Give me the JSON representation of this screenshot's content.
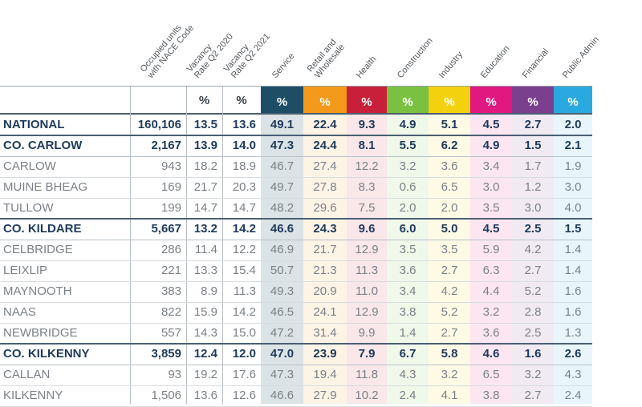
{
  "headers": {
    "occupied_units": "Occupied units\nwith NACE Code",
    "vac2020": "Vacancy\nRate Q2 2020",
    "vac2021": "Vacancy\nRate Q2 2021",
    "service": "Service",
    "retail": "Retail and\nWholesale",
    "health": "Health",
    "construction": "Construction",
    "industry": "Industry",
    "education": "Education",
    "financial": "Financial",
    "public_admin": "Public Admin",
    "percent_symbol": "%"
  },
  "colors": {
    "service": "#1e4e66",
    "retail": "#f39a1c",
    "health": "#c8203a",
    "construction": "#7ac142",
    "industry": "#f4d10e",
    "education": "#e0187f",
    "financial": "#7b3f8f",
    "public_admin": "#29a9df"
  },
  "rows": [
    {
      "name": "NATIONAL",
      "bold": true,
      "units": "160,106",
      "v20": "13.5",
      "v21": "13.6",
      "service": "49.1",
      "retail": "22.4",
      "health": "9.3",
      "construction": "4.9",
      "industry": "5.1",
      "education": "4.5",
      "financial": "2.7",
      "public_admin": "2.0"
    },
    {
      "name": "CO. CARLOW",
      "bold": true,
      "units": "2,167",
      "v20": "13.9",
      "v21": "14.0",
      "service": "47.3",
      "retail": "24.4",
      "health": "8.1",
      "construction": "5.5",
      "industry": "6.2",
      "education": "4.9",
      "financial": "1.5",
      "public_admin": "2.1"
    },
    {
      "name": "CARLOW",
      "bold": false,
      "units": "943",
      "v20": "18.2",
      "v21": "18.9",
      "service": "46.7",
      "retail": "27.4",
      "health": "12.2",
      "construction": "3.2",
      "industry": "3.6",
      "education": "3.4",
      "financial": "1.7",
      "public_admin": "1.9"
    },
    {
      "name": "MUINE BHEAG",
      "bold": false,
      "units": "169",
      "v20": "21.7",
      "v21": "20.3",
      "service": "49.7",
      "retail": "27.8",
      "health": "8.3",
      "construction": "0.6",
      "industry": "6.5",
      "education": "3.0",
      "financial": "1.2",
      "public_admin": "3.0"
    },
    {
      "name": "TULLOW",
      "bold": false,
      "units": "199",
      "v20": "14.7",
      "v21": "14.7",
      "service": "48.2",
      "retail": "29.6",
      "health": "7.5",
      "construction": "2.0",
      "industry": "2.0",
      "education": "3.5",
      "financial": "3.0",
      "public_admin": "4.0"
    },
    {
      "name": "CO. KILDARE",
      "bold": true,
      "units": "5,667",
      "v20": "13.2",
      "v21": "14.2",
      "service": "46.6",
      "retail": "24.3",
      "health": "9.6",
      "construction": "6.0",
      "industry": "5.0",
      "education": "4.5",
      "financial": "2.5",
      "public_admin": "1.5"
    },
    {
      "name": "CELBRIDGE",
      "bold": false,
      "units": "286",
      "v20": "11.4",
      "v21": "12.2",
      "service": "46.9",
      "retail": "21.7",
      "health": "12.9",
      "construction": "3.5",
      "industry": "3.5",
      "education": "5.9",
      "financial": "4.2",
      "public_admin": "1.4"
    },
    {
      "name": "LEIXLIP",
      "bold": false,
      "units": "221",
      "v20": "13.3",
      "v21": "15.4",
      "service": "50.7",
      "retail": "21.3",
      "health": "11.3",
      "construction": "3.6",
      "industry": "2.7",
      "education": "6.3",
      "financial": "2.7",
      "public_admin": "1.4"
    },
    {
      "name": "MAYNOOTH",
      "bold": false,
      "units": "383",
      "v20": "8.9",
      "v21": "11.3",
      "service": "49.3",
      "retail": "20.9",
      "health": "11.0",
      "construction": "3.4",
      "industry": "4.2",
      "education": "4.4",
      "financial": "5.2",
      "public_admin": "1.6"
    },
    {
      "name": "NAAS",
      "bold": false,
      "units": "822",
      "v20": "15.9",
      "v21": "14.2",
      "service": "46.5",
      "retail": "24.1",
      "health": "12.9",
      "construction": "3.8",
      "industry": "5.2",
      "education": "3.2",
      "financial": "2.8",
      "public_admin": "1.6"
    },
    {
      "name": "NEWBRIDGE",
      "bold": false,
      "units": "557",
      "v20": "14.3",
      "v21": "15.0",
      "service": "47.2",
      "retail": "31.4",
      "health": "9.9",
      "construction": "1.4",
      "industry": "2.7",
      "education": "3.6",
      "financial": "2.5",
      "public_admin": "1.3"
    },
    {
      "name": "CO. KILKENNY",
      "bold": true,
      "units": "3,859",
      "v20": "12.4",
      "v21": "12.0",
      "service": "47.0",
      "retail": "23.9",
      "health": "7.9",
      "construction": "6.7",
      "industry": "5.8",
      "education": "4.6",
      "financial": "1.6",
      "public_admin": "2.6"
    },
    {
      "name": "CALLAN",
      "bold": false,
      "units": "93",
      "v20": "19.2",
      "v21": "17.6",
      "service": "47.3",
      "retail": "19.4",
      "health": "11.8",
      "construction": "4.3",
      "industry": "3.2",
      "education": "6.5",
      "financial": "3.2",
      "public_admin": "4.3"
    },
    {
      "name": "KILKENNY",
      "bold": false,
      "units": "1,506",
      "v20": "13.6",
      "v21": "12.6",
      "service": "46.6",
      "retail": "27.9",
      "health": "10.2",
      "construction": "2.4",
      "industry": "4.1",
      "education": "3.8",
      "financial": "2.7",
      "public_admin": "2.4"
    }
  ]
}
